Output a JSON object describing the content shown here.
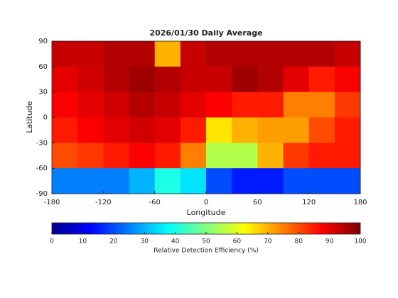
{
  "chart_data": {
    "type": "heatmap",
    "title": "2026/01/30 Daily Average",
    "x_label": "Longitude",
    "y_label": "Latitude",
    "xlim": [
      -180,
      180
    ],
    "ylim": [
      -90,
      90
    ],
    "xticks": [
      -180,
      -120,
      -60,
      0,
      60,
      120,
      180
    ],
    "yticks": [
      90,
      60,
      30,
      0,
      -30,
      -60,
      -90
    ],
    "x_edges": [
      -180,
      -150,
      -120,
      -90,
      -60,
      -30,
      0,
      30,
      60,
      90,
      120,
      150,
      180
    ],
    "y_edges": [
      90,
      60,
      30,
      0,
      -30,
      -60,
      -90
    ],
    "values": [
      [
        93,
        93,
        95,
        95,
        70,
        93,
        95,
        95,
        95,
        95,
        95,
        93
      ],
      [
        90,
        92,
        95,
        97,
        95,
        93,
        93,
        97,
        95,
        90,
        85,
        88
      ],
      [
        88,
        90,
        92,
        95,
        93,
        90,
        88,
        85,
        85,
        75,
        75,
        82
      ],
      [
        85,
        88,
        90,
        92,
        90,
        85,
        65,
        70,
        72,
        72,
        80,
        85
      ],
      [
        80,
        82,
        85,
        88,
        85,
        75,
        55,
        55,
        70,
        82,
        85,
        85
      ],
      [
        25,
        25,
        25,
        30,
        40,
        35,
        20,
        15,
        15,
        20,
        20,
        20
      ]
    ],
    "colormap": "jet",
    "clim": [
      0,
      100
    ],
    "colorbar_ticks": [
      0,
      10,
      20,
      30,
      40,
      50,
      60,
      70,
      80,
      90,
      100
    ],
    "colorbar_label": "Relative Detection Efficiency (%)"
  }
}
